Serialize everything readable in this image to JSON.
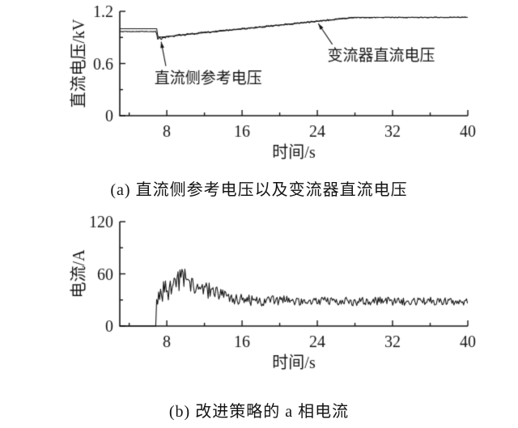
{
  "style": {
    "background": "#ffffff",
    "line_color": "#141414",
    "axis_color": "#141414",
    "text_color": "#141414"
  },
  "chart_data": [
    {
      "type": "line",
      "title": "",
      "xlabel": "时间/s",
      "ylabel": "直流电压/kV",
      "xlim": [
        3,
        40
      ],
      "ylim": [
        0,
        1.2
      ],
      "xticks": [
        8,
        16,
        24,
        32,
        40
      ],
      "xtick_labels": [
        "8",
        "16",
        "24",
        "32",
        "40"
      ],
      "xminor": [
        4,
        12,
        20,
        28,
        36
      ],
      "yticks": [
        0,
        0.6,
        1.2
      ],
      "ytick_labels": [
        "0",
        "0.6",
        "1.2"
      ],
      "yminor": [
        0.3,
        0.9
      ],
      "grid": false,
      "legend": "none",
      "series": [
        {
          "name": "直流侧参考电压",
          "x": [
            3,
            6.95,
            7.05,
            28,
            40
          ],
          "mean": [
            1.0,
            1.0,
            0.9,
            1.13,
            1.13
          ],
          "amp": [
            0,
            0,
            0,
            0,
            0
          ]
        },
        {
          "name": "变流器直流电压",
          "x": [
            3,
            6.9,
            7.0,
            7.3,
            7.8,
            9,
            12,
            16,
            20,
            24,
            27,
            28,
            40
          ],
          "mean": [
            0.968,
            0.968,
            0.858,
            0.9,
            0.895,
            0.922,
            0.955,
            0.999,
            1.042,
            1.086,
            1.119,
            1.128,
            1.132
          ],
          "amp": [
            0.003,
            0.003,
            0.03,
            0.025,
            0.015,
            0.012,
            0.01,
            0.01,
            0.009,
            0.009,
            0.008,
            0.005,
            0.004
          ]
        }
      ],
      "annotations": [
        {
          "text": "直流侧参考电压",
          "tx": 12.4,
          "ty": 0.44,
          "line": [
            [
              7.9,
              0.57
            ],
            [
              7.4,
              0.85
            ]
          ]
        },
        {
          "text": "变流器直流电压",
          "tx": 30.8,
          "ty": 0.7,
          "line": [
            [
              25.6,
              0.82
            ],
            [
              24.1,
              1.06
            ]
          ]
        }
      ],
      "caption": "(a) 直流侧参考电压以及变流器直流电压"
    },
    {
      "type": "line",
      "title": "",
      "xlabel": "时间/s",
      "ylabel": "电流/A",
      "xlim": [
        3,
        40
      ],
      "ylim": [
        0,
        120
      ],
      "xticks": [
        8,
        16,
        24,
        32,
        40
      ],
      "xtick_labels": [
        "8",
        "16",
        "24",
        "32",
        "40"
      ],
      "xminor": [
        4,
        12,
        20,
        28,
        36
      ],
      "yticks": [
        0,
        60,
        120
      ],
      "ytick_labels": [
        "0",
        "60",
        "120"
      ],
      "yminor": [
        30,
        90
      ],
      "grid": false,
      "legend": "none",
      "series": [
        {
          "name": "a相电流",
          "x": [
            3,
            6.85,
            6.95,
            7.5,
            8,
            9,
            9.5,
            10,
            10.5,
            11,
            12,
            13,
            14,
            15,
            16,
            18,
            20,
            22,
            24,
            26,
            28,
            30,
            32,
            34,
            36,
            38,
            40
          ],
          "mean": [
            0,
            0,
            30,
            36,
            42,
            50,
            54,
            53,
            50,
            46,
            42,
            38,
            34,
            31,
            30,
            29,
            30,
            29,
            28,
            29,
            28,
            29,
            28,
            28,
            29,
            28,
            28
          ],
          "amp": [
            0,
            0,
            16,
            17,
            16,
            14,
            13,
            13,
            12,
            11,
            10,
            9,
            8,
            7,
            7,
            6,
            6,
            5,
            5,
            5,
            5,
            5,
            5,
            4,
            5,
            4,
            4
          ]
        }
      ],
      "annotations": [],
      "caption": "(b) 改进策略的 a 相电流"
    }
  ]
}
